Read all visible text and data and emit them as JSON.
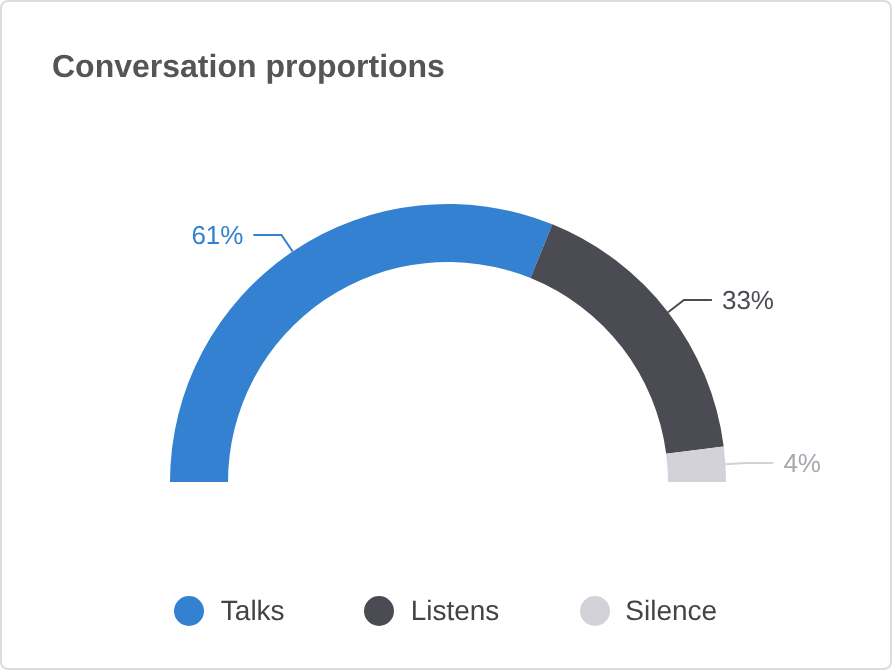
{
  "chart_data": {
    "type": "donut",
    "title": "Conversation proportions",
    "categories": [
      "Talks",
      "Listens",
      "Silence"
    ],
    "values": [
      61,
      33,
      4
    ],
    "colors": [
      "#3381d0",
      "#4b4b53",
      "#d2d2d8"
    ],
    "value_labels": [
      "61%",
      "33%",
      "4%"
    ],
    "legend": "bottom"
  }
}
